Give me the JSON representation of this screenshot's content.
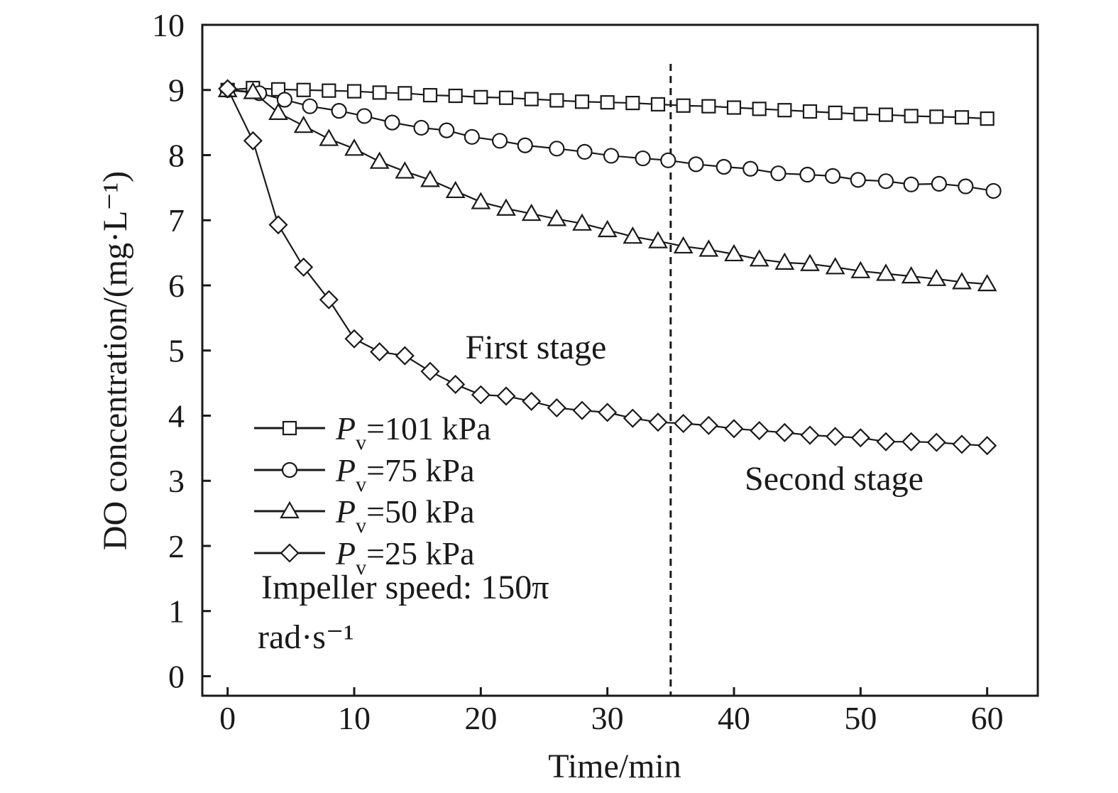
{
  "chart_data": {
    "type": "line",
    "xlabel": "Time/min",
    "ylabel": "DO concentration/(mg·L⁻¹)",
    "xlim": [
      -2,
      64
    ],
    "ylim": [
      -0.3,
      10
    ],
    "xticks": [
      0,
      10,
      20,
      30,
      40,
      50,
      60
    ],
    "yticks": [
      0,
      1,
      2,
      3,
      4,
      5,
      6,
      7,
      8,
      9,
      10
    ],
    "grid": false,
    "legend_position": "lower-left",
    "series": [
      {
        "name": "Pv=101 kPa",
        "label_main": "P",
        "label_sub": "v",
        "label_rest": "=101 kPa",
        "marker": "square",
        "x": [
          0,
          2,
          4,
          6,
          8,
          10,
          12,
          14,
          16,
          18,
          20,
          22,
          24,
          26,
          28,
          30,
          32,
          34,
          36,
          38,
          40,
          42,
          44,
          46,
          48,
          50,
          52,
          54,
          56,
          58,
          60
        ],
        "y": [
          9.0,
          9.03,
          9.01,
          9.0,
          8.99,
          8.98,
          8.96,
          8.95,
          8.92,
          8.91,
          8.89,
          8.88,
          8.86,
          8.84,
          8.82,
          8.81,
          8.8,
          8.78,
          8.76,
          8.75,
          8.73,
          8.71,
          8.69,
          8.67,
          8.65,
          8.63,
          8.62,
          8.6,
          8.59,
          8.58,
          8.56
        ]
      },
      {
        "name": "Pv=75 kPa",
        "label_main": "P",
        "label_sub": "v",
        "label_rest": "=75 kPa",
        "marker": "circle",
        "x": [
          0,
          2.5,
          4.5,
          6.5,
          8.8,
          10.8,
          13,
          15.3,
          17.3,
          19.3,
          21.5,
          23.5,
          26,
          28.2,
          30.3,
          32.8,
          34.8,
          37,
          39.2,
          41.3,
          43.5,
          45.8,
          47.8,
          49.8,
          52,
          54,
          56.2,
          58.3,
          60.5
        ],
        "y": [
          9.0,
          8.95,
          8.85,
          8.75,
          8.68,
          8.6,
          8.5,
          8.42,
          8.38,
          8.28,
          8.22,
          8.15,
          8.1,
          8.05,
          7.99,
          7.95,
          7.92,
          7.86,
          7.82,
          7.79,
          7.72,
          7.7,
          7.68,
          7.62,
          7.6,
          7.55,
          7.56,
          7.52,
          7.45
        ]
      },
      {
        "name": "Pv=50 kPa",
        "label_main": "P",
        "label_sub": "v",
        "label_rest": "=50 kPa",
        "marker": "triangle",
        "x": [
          0,
          2,
          4,
          6,
          8,
          10,
          12,
          14,
          16,
          18,
          20,
          22,
          24,
          26,
          28,
          30,
          32,
          34,
          36,
          38,
          40,
          42,
          44,
          46,
          48,
          50,
          52,
          54,
          56,
          58,
          60
        ],
        "y": [
          9.0,
          8.97,
          8.65,
          8.45,
          8.25,
          8.1,
          7.9,
          7.75,
          7.62,
          7.45,
          7.28,
          7.18,
          7.1,
          7.02,
          6.95,
          6.85,
          6.75,
          6.68,
          6.6,
          6.55,
          6.48,
          6.4,
          6.35,
          6.33,
          6.28,
          6.22,
          6.18,
          6.14,
          6.1,
          6.05,
          6.02
        ]
      },
      {
        "name": "Pv=25 kPa",
        "label_main": "P",
        "label_sub": "v",
        "label_rest": "=25 kPa",
        "marker": "diamond",
        "x": [
          0,
          2,
          4,
          6,
          8,
          10,
          12,
          14,
          16,
          18,
          20,
          22,
          24,
          26,
          28,
          30,
          32,
          34,
          36,
          38,
          40,
          42,
          44,
          46,
          48,
          50,
          52,
          54,
          56,
          58,
          60
        ],
        "y": [
          9.02,
          8.22,
          6.93,
          6.28,
          5.78,
          5.18,
          4.98,
          4.92,
          4.68,
          4.48,
          4.32,
          4.3,
          4.22,
          4.12,
          4.08,
          4.05,
          3.96,
          3.9,
          3.88,
          3.85,
          3.8,
          3.77,
          3.74,
          3.7,
          3.68,
          3.66,
          3.6,
          3.6,
          3.59,
          3.56,
          3.54
        ]
      }
    ],
    "annotations": {
      "first_stage": "First stage",
      "second_stage": "Second stage",
      "stage_boundary_x": 35,
      "note_line1": "Impeller speed: 150π",
      "note_line2": "rad·s⁻¹"
    }
  }
}
